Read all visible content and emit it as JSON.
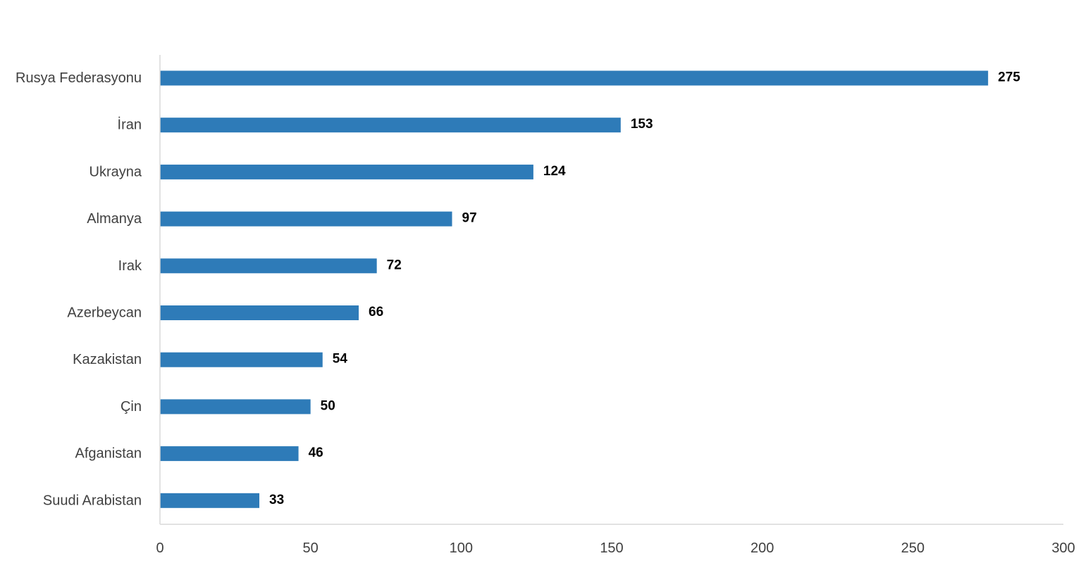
{
  "chart_data": {
    "type": "bar",
    "orientation": "horizontal",
    "title": "",
    "xlabel": "",
    "ylabel": "",
    "categories": [
      "Rusya Federasyonu",
      "İran",
      "Ukrayna",
      "Almanya",
      "Irak",
      "Azerbeycan",
      "Kazakistan",
      "Çin",
      "Afganistan",
      "Suudi Arabistan"
    ],
    "values": [
      275,
      153,
      124,
      97,
      72,
      66,
      54,
      50,
      46,
      33
    ],
    "xlim": [
      0,
      300
    ],
    "xticks": [
      0,
      50,
      100,
      150,
      200,
      250,
      300
    ],
    "grid": false,
    "legend": "none",
    "colors": {
      "bar": "#2e7bb8",
      "axis": "#d9d9d9"
    }
  }
}
